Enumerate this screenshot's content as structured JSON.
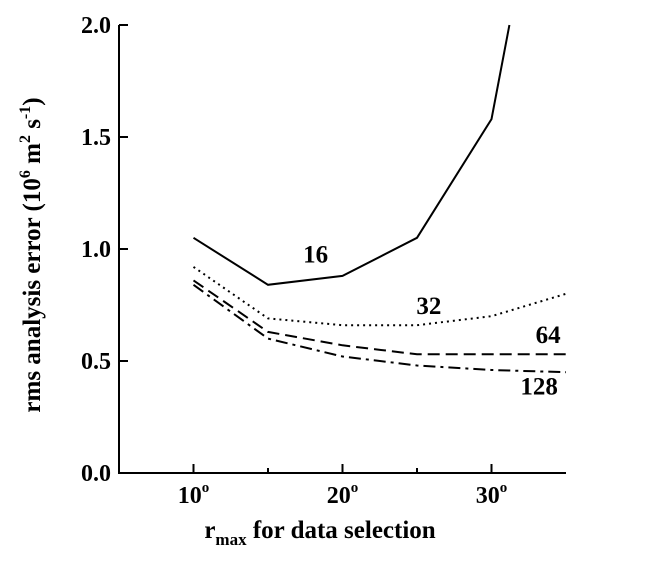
{
  "chart_data": {
    "type": "line",
    "xlabel_main": "r",
    "xlabel_sub": "max",
    "xlabel_rest": " for data selection",
    "ylabel_main": "rms analysis error (10",
    "ylabel_exp1": "6",
    "ylabel_mid": "  m",
    "ylabel_exp2": "2",
    "ylabel_s": " s",
    "ylabel_exp3": "-1",
    "ylabel_end": ")",
    "xlim": [
      5,
      35
    ],
    "ylim": [
      0,
      2.0
    ],
    "xticks": [
      {
        "value": 10,
        "label": "10",
        "sup": "o"
      },
      {
        "value": 20,
        "label": "20",
        "sup": "o"
      },
      {
        "value": 30,
        "label": "30",
        "sup": "o"
      }
    ],
    "yticks": [
      {
        "value": 0.0,
        "label": "0.0"
      },
      {
        "value": 0.5,
        "label": "0.5"
      },
      {
        "value": 1.0,
        "label": "1.0"
      },
      {
        "value": 1.5,
        "label": "1.5"
      },
      {
        "value": 2.0,
        "label": "2.0"
      }
    ],
    "series": [
      {
        "name": "16",
        "style": "solid",
        "x": [
          10,
          15,
          20,
          25,
          30,
          31.2
        ],
        "y": [
          1.05,
          0.84,
          0.88,
          1.05,
          1.58,
          2.0
        ],
        "label_at": [
          18.2,
          0.94
        ]
      },
      {
        "name": "32",
        "style": "dotted",
        "x": [
          10,
          15,
          20,
          25,
          30,
          35
        ],
        "y": [
          0.92,
          0.69,
          0.66,
          0.66,
          0.7,
          0.8
        ],
        "label_at": [
          25.8,
          0.71
        ]
      },
      {
        "name": "64",
        "style": "dashed",
        "x": [
          10,
          15,
          20,
          25,
          30,
          35
        ],
        "y": [
          0.86,
          0.63,
          0.57,
          0.53,
          0.53,
          0.53
        ],
        "label_at": [
          33.8,
          0.58
        ]
      },
      {
        "name": "128",
        "style": "dashdot",
        "x": [
          10,
          15,
          20,
          25,
          30,
          35
        ],
        "y": [
          0.84,
          0.6,
          0.52,
          0.48,
          0.46,
          0.45
        ],
        "label_at": [
          33.2,
          0.35
        ]
      }
    ]
  }
}
